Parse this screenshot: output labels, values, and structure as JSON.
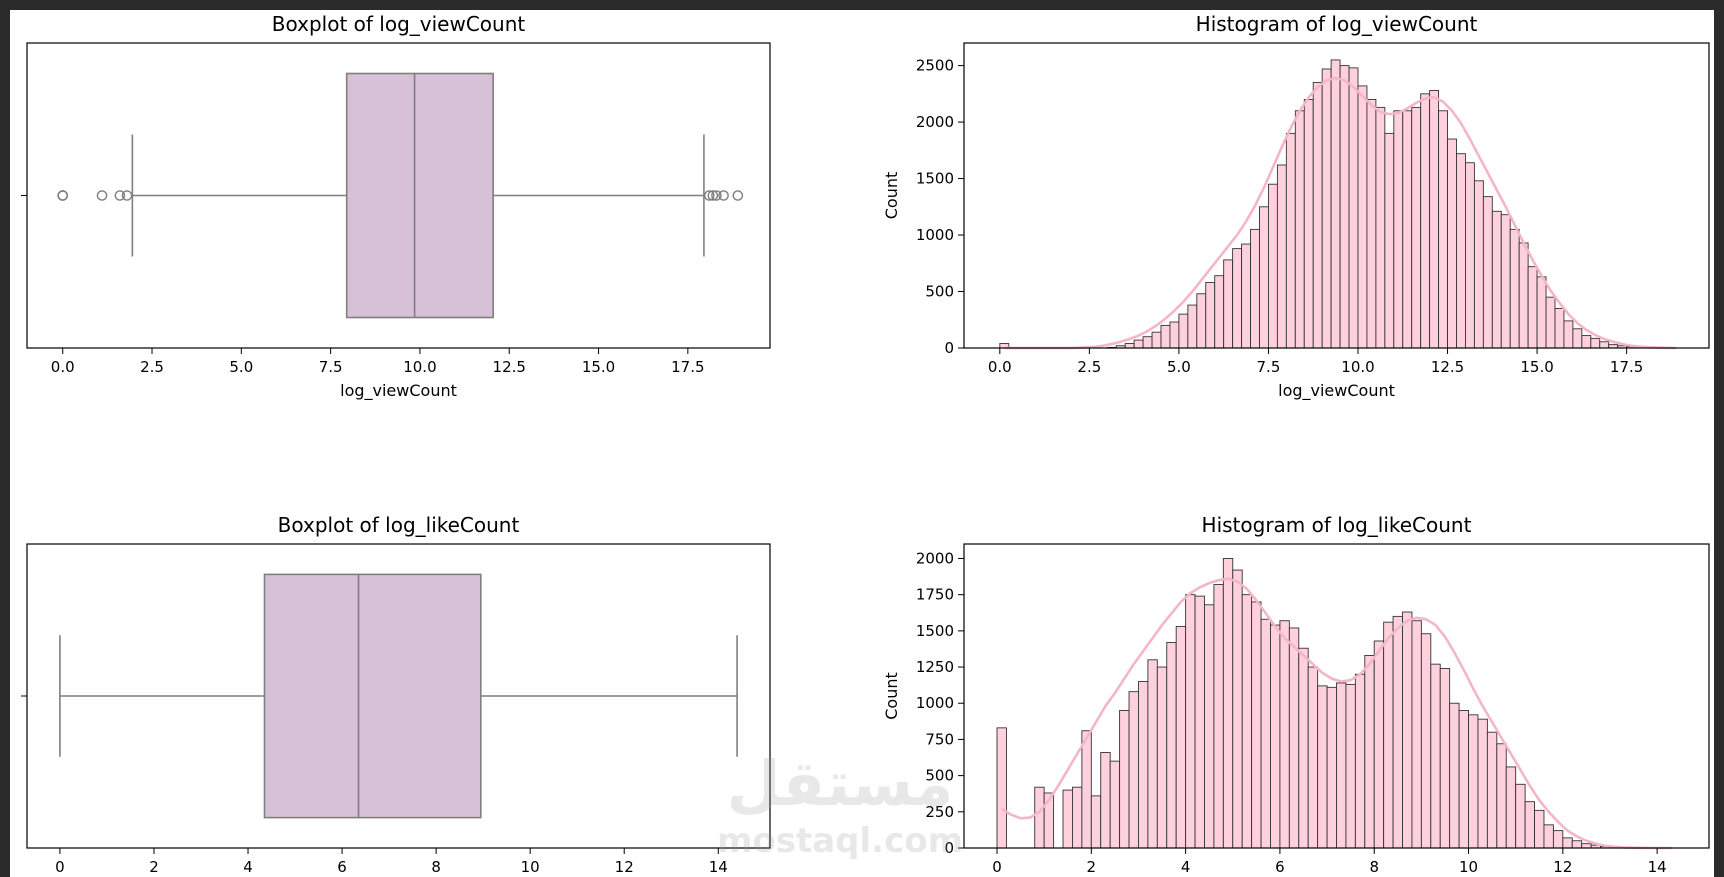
{
  "figure": {
    "watermark": {
      "arabic": "مستقل",
      "latin": "mostaql.com"
    }
  },
  "colors": {
    "box_fill": "#d6c1d7",
    "box_edge": "#7f7f7f",
    "hist_fill": "#ffd1dc",
    "hist_edge": "#333333",
    "kde_line": "#f4b6c6",
    "axis": "#000000"
  },
  "chart_data": [
    {
      "type": "boxplot",
      "title": "Boxplot of log_viewCount",
      "xlabel": "log_viewCount",
      "ylabel": "",
      "xlim": [
        -1.0,
        19.8
      ],
      "xticks": [
        0.0,
        2.5,
        5.0,
        7.5,
        10.0,
        12.5,
        15.0,
        17.5
      ],
      "xtick_labels": [
        "0.0",
        "2.5",
        "5.0",
        "7.5",
        "10.0",
        "12.5",
        "15.0",
        "17.5"
      ],
      "q1": 7.95,
      "median": 9.85,
      "q3": 12.05,
      "whisker_low": 1.95,
      "whisker_high": 17.95,
      "outliers": [
        0.0,
        0.0,
        0.0,
        1.1,
        1.6,
        1.8,
        18.1,
        18.2,
        18.3,
        18.5,
        18.9
      ]
    },
    {
      "type": "bar",
      "title": "Histogram of log_viewCount",
      "xlabel": "log_viewCount",
      "ylabel": "Count",
      "xlim": [
        -1.0,
        19.8
      ],
      "ylim": [
        0,
        2700
      ],
      "xticks": [
        0.0,
        2.5,
        5.0,
        7.5,
        10.0,
        12.5,
        15.0,
        17.5
      ],
      "xtick_labels": [
        "0.0",
        "2.5",
        "5.0",
        "7.5",
        "10.0",
        "12.5",
        "15.0",
        "17.5"
      ],
      "yticks": [
        0,
        500,
        1000,
        1500,
        2000,
        2500
      ],
      "bin_start": 0.0,
      "bin_width": 0.25,
      "values": [
        40,
        0,
        0,
        0,
        0,
        0,
        0,
        0,
        0,
        0,
        0,
        0,
        5,
        20,
        40,
        70,
        100,
        140,
        200,
        230,
        300,
        380,
        480,
        580,
        640,
        780,
        880,
        920,
        1050,
        1250,
        1450,
        1620,
        1900,
        2100,
        2200,
        2350,
        2470,
        2550,
        2500,
        2480,
        2320,
        2200,
        2130,
        1900,
        2100,
        2100,
        2130,
        2250,
        2280,
        2100,
        1850,
        1720,
        1640,
        1480,
        1340,
        1210,
        1180,
        1050,
        930,
        720,
        630,
        450,
        350,
        240,
        170,
        110,
        85,
        55,
        30,
        20,
        12,
        8,
        4,
        2,
        0,
        0
      ],
      "kde": [
        0,
        0,
        0,
        0,
        0,
        0,
        0,
        0,
        2,
        5,
        10,
        20,
        35,
        55,
        80,
        110,
        150,
        200,
        260,
        330,
        410,
        500,
        600,
        700,
        800,
        900,
        1000,
        1120,
        1260,
        1420,
        1600,
        1780,
        1950,
        2100,
        2220,
        2310,
        2370,
        2390,
        2370,
        2310,
        2230,
        2150,
        2090,
        2070,
        2080,
        2120,
        2170,
        2210,
        2220,
        2180,
        2100,
        1990,
        1850,
        1700,
        1550,
        1400,
        1250,
        1090,
        930,
        780,
        640,
        510,
        400,
        300,
        220,
        160,
        115,
        80,
        55,
        35,
        20,
        12,
        7,
        4,
        2,
        0
      ]
    },
    {
      "type": "boxplot",
      "title": "Boxplot of log_likeCount",
      "xlabel": "",
      "ylabel": "",
      "xlim": [
        -0.7,
        15.1
      ],
      "xticks": [
        0,
        2,
        4,
        6,
        8,
        10,
        12,
        14
      ],
      "xtick_labels": [
        "0",
        "2",
        "4",
        "6",
        "8",
        "10",
        "12",
        "14"
      ],
      "q1": 4.35,
      "median": 6.35,
      "q3": 8.95,
      "whisker_low": 0.0,
      "whisker_high": 14.4,
      "outliers": []
    },
    {
      "type": "bar",
      "title": "Histogram of log_likeCount",
      "xlabel": "",
      "ylabel": "Count",
      "xlim": [
        -0.7,
        15.1
      ],
      "ylim": [
        0,
        2100
      ],
      "xticks": [
        0,
        2,
        4,
        6,
        8,
        10,
        12,
        14
      ],
      "xtick_labels": [
        "0",
        "2",
        "4",
        "6",
        "8",
        "10",
        "12",
        "14"
      ],
      "yticks": [
        0,
        250,
        500,
        750,
        1000,
        1250,
        1500,
        1750,
        2000
      ],
      "bin_start": 0.0,
      "bin_width": 0.2,
      "values": [
        830,
        0,
        0,
        0,
        420,
        380,
        0,
        400,
        420,
        810,
        360,
        660,
        600,
        950,
        1080,
        1150,
        1300,
        1250,
        1420,
        1530,
        1750,
        1740,
        1680,
        1820,
        2000,
        1920,
        1750,
        1700,
        1580,
        1540,
        1570,
        1520,
        1380,
        1250,
        1120,
        1110,
        1140,
        1130,
        1200,
        1330,
        1430,
        1560,
        1600,
        1630,
        1570,
        1480,
        1270,
        1240,
        1000,
        950,
        920,
        890,
        800,
        720,
        560,
        440,
        320,
        260,
        160,
        120,
        70,
        50,
        30,
        20,
        10,
        5,
        3,
        1,
        0,
        0,
        0,
        0
      ],
      "kde": [
        270,
        230,
        205,
        210,
        250,
        330,
        430,
        540,
        650,
        760,
        870,
        980,
        1070,
        1170,
        1270,
        1360,
        1450,
        1540,
        1620,
        1700,
        1760,
        1800,
        1830,
        1850,
        1860,
        1840,
        1790,
        1710,
        1620,
        1530,
        1450,
        1390,
        1330,
        1270,
        1210,
        1170,
        1150,
        1160,
        1200,
        1270,
        1360,
        1450,
        1520,
        1570,
        1590,
        1580,
        1540,
        1460,
        1350,
        1230,
        1100,
        980,
        870,
        760,
        650,
        540,
        430,
        330,
        250,
        180,
        120,
        80,
        50,
        30,
        15,
        8,
        4,
        2,
        1,
        0,
        0,
        0
      ]
    }
  ]
}
